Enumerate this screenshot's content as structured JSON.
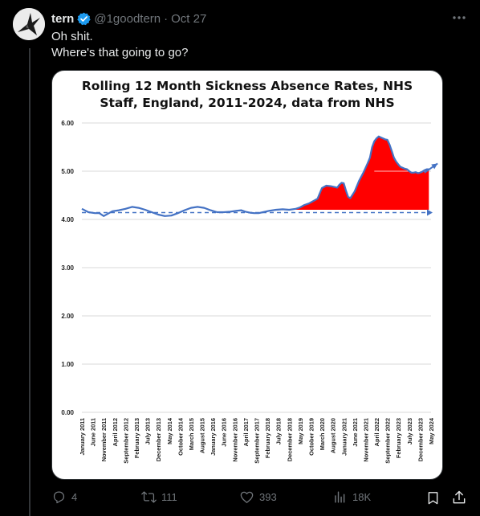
{
  "tweet": {
    "author_name": "tern",
    "handle": "@1goodtern",
    "separator": "·",
    "date": "Oct 27",
    "text_line1": "Oh shit.",
    "text_line2": "Where's that going to go?"
  },
  "actions": {
    "replies": "4",
    "reposts": "111",
    "likes": "393",
    "views": "18K"
  },
  "colors": {
    "background": "#000000",
    "accent": "#1d9bf0",
    "muted": "#71767b",
    "line": "#4472c4",
    "fill": "#ff0000"
  },
  "icons": [
    "verified-badge-icon",
    "more-icon",
    "reply-icon",
    "repost-icon",
    "like-icon",
    "views-icon",
    "bookmark-icon",
    "share-icon"
  ],
  "chart_data": {
    "type": "area",
    "title_line1": "Rolling 12 Month Sickness Absence Rates, NHS",
    "title_line2": "Staff, England, 2011-2024, data from NHS",
    "ylim": [
      0,
      6
    ],
    "yticks": [
      "0.00",
      "1.00",
      "2.00",
      "3.00",
      "4.00",
      "5.00",
      "6.00"
    ],
    "xlim": [
      0,
      160
    ],
    "grid": true,
    "tick_labels": [
      {
        "i": 0,
        "label": "January 2011"
      },
      {
        "i": 5,
        "label": "June 2011"
      },
      {
        "i": 10,
        "label": "November 2011"
      },
      {
        "i": 15,
        "label": "April 2012"
      },
      {
        "i": 20,
        "label": "September 2012"
      },
      {
        "i": 25,
        "label": "February 2013"
      },
      {
        "i": 30,
        "label": "July 2013"
      },
      {
        "i": 35,
        "label": "December 2013"
      },
      {
        "i": 40,
        "label": "May 2014"
      },
      {
        "i": 45,
        "label": "October 2014"
      },
      {
        "i": 50,
        "label": "March 2015"
      },
      {
        "i": 55,
        "label": "August 2015"
      },
      {
        "i": 60,
        "label": "January 2016"
      },
      {
        "i": 65,
        "label": "June 2016"
      },
      {
        "i": 70,
        "label": "November 2016"
      },
      {
        "i": 75,
        "label": "April 2017"
      },
      {
        "i": 80,
        "label": "September 2017"
      },
      {
        "i": 85,
        "label": "February 2018"
      },
      {
        "i": 90,
        "label": "July 2018"
      },
      {
        "i": 95,
        "label": "December 2018"
      },
      {
        "i": 100,
        "label": "May 2019"
      },
      {
        "i": 105,
        "label": "October 2019"
      },
      {
        "i": 110,
        "label": "March 2020"
      },
      {
        "i": 115,
        "label": "August 2020"
      },
      {
        "i": 120,
        "label": "January 2021"
      },
      {
        "i": 125,
        "label": "June 2021"
      },
      {
        "i": 130,
        "label": "November 2021"
      },
      {
        "i": 135,
        "label": "April 2022"
      },
      {
        "i": 140,
        "label": "September 2022"
      },
      {
        "i": 145,
        "label": "February 2023"
      },
      {
        "i": 150,
        "label": "July 2023"
      },
      {
        "i": 155,
        "label": "December 2023"
      },
      {
        "i": 160,
        "label": "May 2024"
      }
    ],
    "series": [
      {
        "points": [
          [
            0,
            4.22
          ],
          [
            3,
            4.15
          ],
          [
            6,
            4.13
          ],
          [
            8,
            4.13
          ],
          [
            10,
            4.07
          ],
          [
            12,
            4.12
          ],
          [
            14,
            4.17
          ],
          [
            17,
            4.19
          ],
          [
            20,
            4.22
          ],
          [
            23,
            4.26
          ],
          [
            26,
            4.24
          ],
          [
            29,
            4.2
          ],
          [
            32,
            4.15
          ],
          [
            35,
            4.1
          ],
          [
            38,
            4.07
          ],
          [
            41,
            4.08
          ],
          [
            44,
            4.13
          ],
          [
            47,
            4.19
          ],
          [
            50,
            4.24
          ],
          [
            53,
            4.26
          ],
          [
            56,
            4.24
          ],
          [
            59,
            4.19
          ],
          [
            62,
            4.15
          ],
          [
            65,
            4.15
          ],
          [
            68,
            4.16
          ],
          [
            71,
            4.18
          ],
          [
            73,
            4.19
          ],
          [
            75,
            4.16
          ],
          [
            77,
            4.14
          ],
          [
            79,
            4.13
          ],
          [
            81,
            4.13
          ],
          [
            83,
            4.15
          ],
          [
            86,
            4.18
          ],
          [
            89,
            4.2
          ],
          [
            92,
            4.21
          ],
          [
            95,
            4.2
          ],
          [
            98,
            4.22
          ],
          [
            100,
            4.25
          ],
          [
            102,
            4.3
          ],
          [
            104,
            4.33
          ],
          [
            106,
            4.38
          ],
          [
            108,
            4.43
          ],
          [
            110,
            4.65
          ],
          [
            112,
            4.7
          ],
          [
            114,
            4.69
          ],
          [
            116,
            4.67
          ],
          [
            117,
            4.66
          ],
          [
            118,
            4.72
          ],
          [
            119,
            4.76
          ],
          [
            120,
            4.75
          ],
          [
            121,
            4.6
          ],
          [
            122,
            4.47
          ],
          [
            123,
            4.44
          ],
          [
            125,
            4.58
          ],
          [
            127,
            4.8
          ],
          [
            129,
            4.97
          ],
          [
            131,
            5.17
          ],
          [
            132,
            5.28
          ],
          [
            133,
            5.5
          ],
          [
            134,
            5.62
          ],
          [
            135,
            5.68
          ],
          [
            136,
            5.72
          ],
          [
            137,
            5.7
          ],
          [
            139,
            5.66
          ],
          [
            140,
            5.65
          ],
          [
            141,
            5.55
          ],
          [
            142,
            5.42
          ],
          [
            143,
            5.28
          ],
          [
            144,
            5.2
          ],
          [
            145,
            5.14
          ],
          [
            146,
            5.09
          ],
          [
            147,
            5.07
          ],
          [
            148,
            5.05
          ],
          [
            149,
            5.04
          ],
          [
            150,
            5.0
          ],
          [
            151,
            4.97
          ],
          [
            152,
            4.97
          ],
          [
            153,
            4.98
          ],
          [
            154,
            4.96
          ],
          [
            155,
            4.97
          ],
          [
            156,
            4.99
          ],
          [
            157,
            5.02
          ],
          [
            158,
            5.04
          ],
          [
            159,
            5.04
          ]
        ]
      }
    ],
    "baseline_y": 4.2,
    "baseline_x_start": 0,
    "baseline_x_end": 160,
    "fill_from_x": 98,
    "trend_arrow": {
      "x1": 157,
      "y1": 4.97,
      "x2": 163,
      "y2": 5.16
    }
  }
}
